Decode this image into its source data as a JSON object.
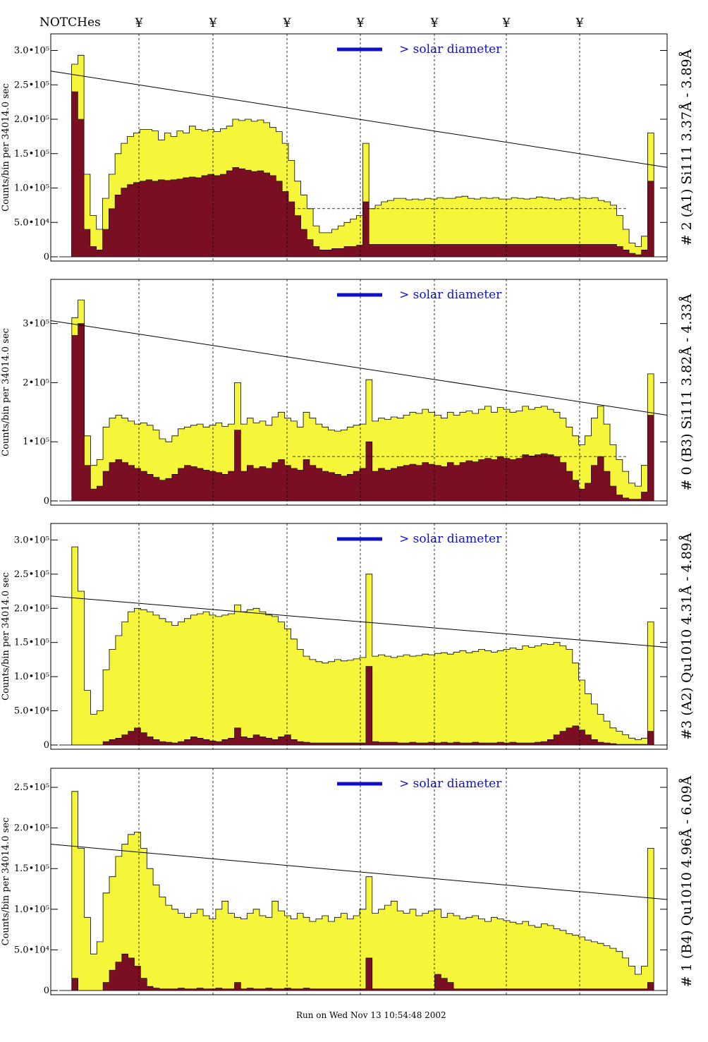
{
  "header": {
    "notches_label": "NOTCHes",
    "notch_symbol": "¥"
  },
  "footer": {
    "run_text": "Run on Wed Nov 13 10:54:48 2002"
  },
  "colors": {
    "background": "#ffffff",
    "total_fill": "#f5f53a",
    "sub_fill": "#7a0e22",
    "legend_blue": "#1010c8",
    "line": "#000000"
  },
  "chart_data": [
    {
      "type": "bar",
      "title": "# 2 (A1) Si111  3.37Å - 3.89Å",
      "ylabel": "Counts/bin per  34014.0 sec",
      "ylim": [
        0,
        320000
      ],
      "yticks": [
        0,
        50000,
        100000,
        150000,
        200000,
        250000,
        300000
      ],
      "ytick_labels": [
        "0",
        "5.0•10⁴",
        "1.0•10⁵",
        "1.5•10⁵",
        "2.0•10⁵",
        "2.5•10⁵",
        "3.0•10⁵"
      ],
      "legend": "> solar diameter",
      "trend": [
        270000,
        130000
      ],
      "dashed_level": 70000,
      "series": [
        {
          "name": "total",
          "values": [
            0,
            0,
            280000,
            293000,
            120000,
            60000,
            40000,
            85000,
            120000,
            150000,
            165000,
            175000,
            180000,
            185000,
            185000,
            183000,
            170000,
            180000,
            175000,
            183000,
            180000,
            190000,
            185000,
            183000,
            185000,
            182000,
            186000,
            190000,
            200000,
            198000,
            200000,
            197000,
            199000,
            195000,
            188000,
            182000,
            165000,
            140000,
            110000,
            90000,
            70000,
            45000,
            35000,
            35000,
            40000,
            45000,
            50000,
            55000,
            60000,
            165000,
            70000,
            75000,
            80000,
            82000,
            85000,
            85000,
            83000,
            84000,
            83000,
            85000,
            84000,
            86000,
            85000,
            85000,
            87000,
            88000,
            85000,
            84000,
            86000,
            85000,
            86000,
            84000,
            84000,
            86000,
            85000,
            84000,
            85000,
            87000,
            86000,
            85000,
            83000,
            85000,
            86000,
            84000,
            86000,
            85000,
            86000,
            82000,
            80000,
            75000,
            60000,
            40000,
            20000,
            15000,
            30000,
            180000,
            0
          ]
        },
        {
          "name": "selected",
          "values": [
            0,
            0,
            240000,
            200000,
            40000,
            15000,
            10000,
            40000,
            70000,
            90000,
            100000,
            105000,
            108000,
            110000,
            112000,
            110000,
            112000,
            111000,
            112000,
            113000,
            115000,
            116000,
            115000,
            118000,
            120000,
            118000,
            120000,
            125000,
            130000,
            128000,
            126000,
            124000,
            125000,
            122000,
            118000,
            110000,
            95000,
            80000,
            60000,
            40000,
            25000,
            15000,
            10000,
            10000,
            12000,
            12000,
            15000,
            15000,
            17000,
            80000,
            18000,
            18000,
            18000,
            18000,
            18000,
            18000,
            18000,
            18000,
            18000,
            18000,
            18000,
            18000,
            18000,
            18000,
            18000,
            18000,
            18000,
            18000,
            18000,
            18000,
            18000,
            18000,
            18000,
            18000,
            18000,
            18000,
            18000,
            18000,
            18000,
            18000,
            18000,
            18000,
            18000,
            18000,
            18000,
            18000,
            18000,
            18000,
            18000,
            18000,
            15000,
            10000,
            5000,
            3000,
            10000,
            110000,
            0
          ]
        }
      ]
    },
    {
      "type": "bar",
      "title": "# 0 (B3) Si111  3.82Å - 4.33Å",
      "ylabel": "Counts/bin per  34014.0 sec",
      "ylim": [
        0,
        370000
      ],
      "yticks": [
        0,
        100000,
        200000,
        300000
      ],
      "ytick_labels": [
        "0",
        "1•10⁵",
        "2•10⁵",
        "3•10⁵"
      ],
      "legend": "> solar diameter",
      "trend": [
        305000,
        145000
      ],
      "dashed_level": 75000,
      "series": [
        {
          "name": "total",
          "values": [
            0,
            0,
            310000,
            340000,
            110000,
            60000,
            70000,
            125000,
            140000,
            145000,
            140000,
            135000,
            130000,
            132000,
            128000,
            120000,
            105000,
            100000,
            110000,
            122000,
            125000,
            128000,
            130000,
            125000,
            128000,
            132000,
            126000,
            130000,
            200000,
            130000,
            140000,
            132000,
            135000,
            128000,
            142000,
            150000,
            140000,
            135000,
            125000,
            150000,
            140000,
            130000,
            125000,
            120000,
            118000,
            120000,
            125000,
            128000,
            130000,
            205000,
            135000,
            140000,
            138000,
            142000,
            140000,
            145000,
            150000,
            148000,
            155000,
            150000,
            145000,
            140000,
            150000,
            145000,
            150000,
            152000,
            148000,
            155000,
            160000,
            150000,
            158000,
            155000,
            150000,
            152000,
            160000,
            155000,
            158000,
            160000,
            155000,
            150000,
            140000,
            125000,
            110000,
            95000,
            110000,
            140000,
            160000,
            130000,
            95000,
            70000,
            50000,
            30000,
            25000,
            60000,
            215000,
            0
          ]
        },
        {
          "name": "selected",
          "values": [
            0,
            0,
            280000,
            300000,
            60000,
            20000,
            25000,
            50000,
            65000,
            70000,
            65000,
            60000,
            55000,
            50000,
            45000,
            40000,
            35000,
            38000,
            45000,
            55000,
            60000,
            58000,
            55000,
            52000,
            50000,
            48000,
            45000,
            50000,
            120000,
            50000,
            60000,
            55000,
            58000,
            55000,
            65000,
            70000,
            60000,
            55000,
            52000,
            70000,
            60000,
            55000,
            50000,
            48000,
            45000,
            42000,
            45000,
            50000,
            55000,
            100000,
            50000,
            55000,
            52000,
            55000,
            58000,
            60000,
            62000,
            60000,
            65000,
            62000,
            60000,
            58000,
            65000,
            60000,
            65000,
            68000,
            66000,
            70000,
            72000,
            70000,
            75000,
            72000,
            70000,
            72000,
            78000,
            76000,
            78000,
            80000,
            78000,
            75000,
            65000,
            50000,
            35000,
            20000,
            30000,
            60000,
            75000,
            50000,
            25000,
            10000,
            5000,
            3000,
            3000,
            15000,
            145000,
            0
          ]
        }
      ]
    },
    {
      "type": "bar",
      "title": "#3 (A2) Qu1010  4.31Å - 4.89Å",
      "ylabel": "Counts/bin per  34014.0 sec",
      "ylim": [
        0,
        320000
      ],
      "yticks": [
        0,
        50000,
        100000,
        150000,
        200000,
        250000,
        300000
      ],
      "ytick_labels": [
        "0",
        "5.0•10⁴",
        "1.0•10⁵",
        "1.5•10⁵",
        "2.0•10⁵",
        "2.5•10⁵",
        "3.0•10⁵"
      ],
      "legend": "> solar diameter",
      "trend": [
        218000,
        143000
      ],
      "dashed_level": null,
      "series": [
        {
          "name": "total",
          "values": [
            0,
            0,
            290000,
            225000,
            80000,
            45000,
            50000,
            110000,
            140000,
            160000,
            180000,
            195000,
            200000,
            198000,
            195000,
            190000,
            185000,
            180000,
            175000,
            180000,
            185000,
            190000,
            192000,
            195000,
            190000,
            188000,
            190000,
            192000,
            205000,
            195000,
            198000,
            200000,
            195000,
            190000,
            188000,
            180000,
            170000,
            155000,
            140000,
            130000,
            125000,
            122000,
            120000,
            122000,
            125000,
            123000,
            124000,
            126000,
            128000,
            250000,
            130000,
            132000,
            130000,
            128000,
            130000,
            132000,
            130000,
            131000,
            133000,
            132000,
            134000,
            135000,
            133000,
            136000,
            138000,
            135000,
            137000,
            140000,
            138000,
            136000,
            138000,
            140000,
            142000,
            140000,
            145000,
            143000,
            145000,
            148000,
            147000,
            150000,
            145000,
            140000,
            120000,
            95000,
            75000,
            60000,
            45000,
            35000,
            25000,
            20000,
            15000,
            10000,
            8000,
            10000,
            180000,
            0
          ]
        },
        {
          "name": "selected",
          "values": [
            0,
            0,
            0,
            0,
            0,
            0,
            0,
            5000,
            8000,
            10000,
            15000,
            20000,
            25000,
            18000,
            12000,
            8000,
            5000,
            4000,
            3000,
            5000,
            8000,
            12000,
            10000,
            8000,
            6000,
            5000,
            8000,
            10000,
            25000,
            12000,
            10000,
            15000,
            12000,
            10000,
            8000,
            12000,
            15000,
            8000,
            5000,
            4000,
            3000,
            3000,
            3000,
            3000,
            3000,
            3000,
            3000,
            3000,
            3000,
            115000,
            5000,
            4000,
            4000,
            4000,
            3000,
            3000,
            4000,
            3000,
            3000,
            4000,
            3000,
            4000,
            3000,
            4000,
            3000,
            3000,
            4000,
            3000,
            3000,
            3000,
            4000,
            3000,
            4000,
            3000,
            3000,
            3000,
            4000,
            5000,
            8000,
            15000,
            20000,
            25000,
            28000,
            22000,
            15000,
            8000,
            4000,
            3000,
            2000,
            1000,
            1000,
            1000,
            1000,
            1000,
            20000,
            0
          ]
        }
      ]
    },
    {
      "type": "bar",
      "title": "# 1 (B4) Qu1010 4.96Å - 6.09Å",
      "ylabel": "Counts/bin per  34014.0 sec",
      "ylim": [
        0,
        270000
      ],
      "yticks": [
        0,
        50000,
        100000,
        150000,
        200000,
        250000
      ],
      "ytick_labels": [
        "0",
        "5.0•10⁴",
        "1.0•10⁵",
        "1.5•10⁵",
        "2.0•10⁵",
        "2.5•10⁵"
      ],
      "legend": "> solar diameter",
      "trend": [
        180000,
        112000
      ],
      "dashed_level": null,
      "series": [
        {
          "name": "total",
          "values": [
            0,
            0,
            245000,
            175000,
            90000,
            45000,
            60000,
            120000,
            140000,
            165000,
            180000,
            192000,
            195000,
            175000,
            150000,
            130000,
            115000,
            105000,
            100000,
            95000,
            90000,
            95000,
            100000,
            92000,
            88000,
            100000,
            110000,
            95000,
            90000,
            88000,
            95000,
            100000,
            92000,
            90000,
            110000,
            98000,
            92000,
            88000,
            95000,
            90000,
            85000,
            88000,
            92000,
            85000,
            90000,
            95000,
            88000,
            92000,
            100000,
            140000,
            95000,
            100000,
            105000,
            110000,
            98000,
            95000,
            100000,
            92000,
            95000,
            98000,
            100000,
            90000,
            95000,
            92000,
            88000,
            90000,
            92000,
            88000,
            85000,
            90000,
            88000,
            86000,
            84000,
            82000,
            85000,
            80000,
            78000,
            82000,
            80000,
            76000,
            74000,
            70000,
            68000,
            66000,
            62000,
            60000,
            58000,
            55000,
            52000,
            48000,
            40000,
            30000,
            20000,
            30000,
            175000,
            0
          ]
        },
        {
          "name": "selected",
          "values": [
            0,
            0,
            15000,
            0,
            0,
            0,
            0,
            10000,
            25000,
            35000,
            45000,
            40000,
            30000,
            15000,
            5000,
            3000,
            2000,
            2000,
            2000,
            3000,
            2000,
            2000,
            3000,
            2000,
            2000,
            3000,
            2000,
            2000,
            10000,
            2000,
            3000,
            2000,
            2000,
            3000,
            2000,
            2000,
            3000,
            2000,
            2000,
            3000,
            2000,
            2000,
            2000,
            2000,
            2000,
            2000,
            2000,
            2000,
            2000,
            40000,
            2000,
            2000,
            2000,
            2000,
            2000,
            2000,
            2000,
            2000,
            2000,
            2000,
            20000,
            15000,
            10000,
            2000,
            2000,
            2000,
            2000,
            2000,
            2000,
            2000,
            2000,
            2000,
            2000,
            2000,
            2000,
            2000,
            2000,
            2000,
            2000,
            2000,
            2000,
            2000,
            2000,
            2000,
            2000,
            2000,
            2000,
            2000,
            2000,
            2000,
            2000,
            2000,
            2000,
            2000,
            10000,
            0
          ]
        }
      ]
    }
  ]
}
